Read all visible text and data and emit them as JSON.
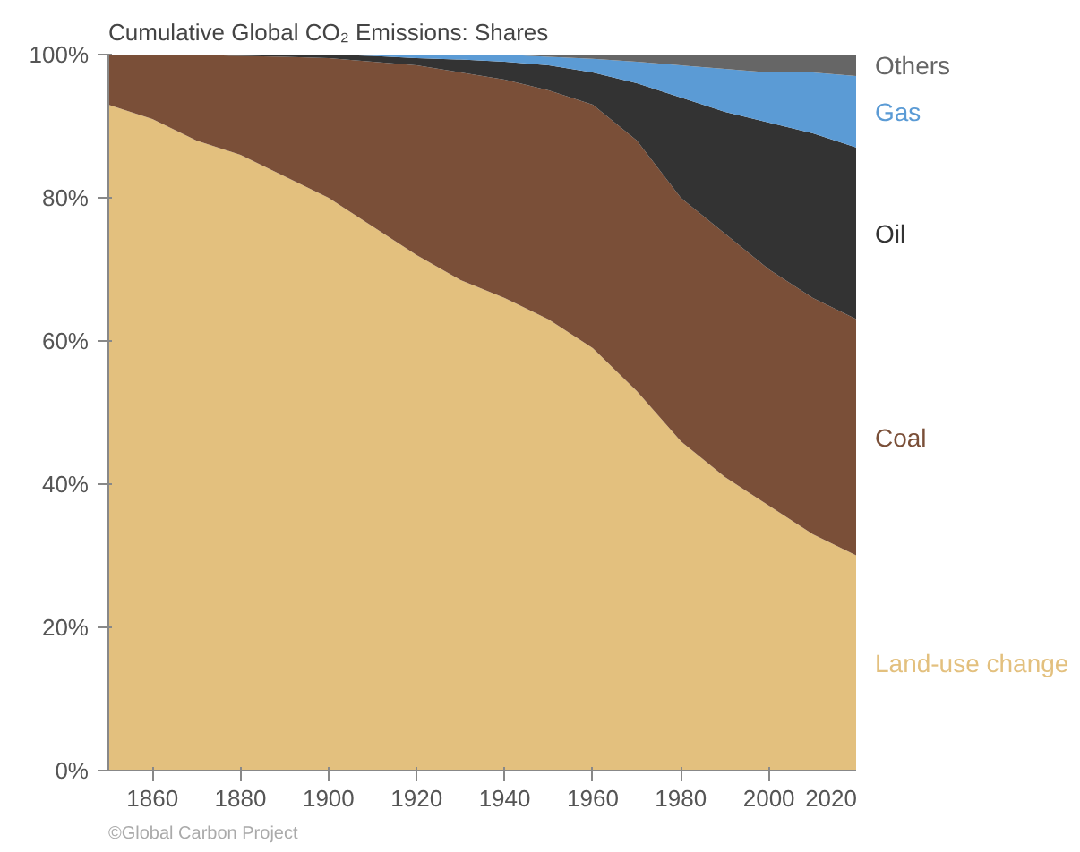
{
  "chart_data": {
    "type": "area",
    "stacked": true,
    "title": "Cumulative Global CO₂ Emissions: Shares",
    "x": [
      1850,
      1860,
      1870,
      1880,
      1890,
      1900,
      1910,
      1920,
      1930,
      1940,
      1950,
      1960,
      1970,
      1980,
      1990,
      2000,
      2010,
      2020
    ],
    "series": [
      {
        "name": "Land-use change",
        "color": "#e3c07e",
        "values": [
          93,
          91,
          88,
          86,
          83,
          80,
          76,
          72,
          68.5,
          66,
          63,
          59,
          53,
          46,
          41,
          37,
          33,
          30
        ]
      },
      {
        "name": "Coal",
        "color": "#7a4f38",
        "values": [
          7,
          9,
          12,
          13.8,
          16.7,
          19.5,
          23,
          26.5,
          29,
          30.5,
          32,
          34,
          35,
          34,
          34,
          33,
          33,
          33
        ]
      },
      {
        "name": "Oil",
        "color": "#333333",
        "values": [
          0,
          0,
          0,
          0.2,
          0.3,
          0.5,
          0.8,
          1,
          1.8,
          2.5,
          3.5,
          4.5,
          8,
          14,
          17,
          20.5,
          23,
          24
        ]
      },
      {
        "name": "Gas",
        "color": "#5b9bd5",
        "values": [
          0,
          0,
          0,
          0,
          0,
          0,
          0.2,
          0.5,
          0.7,
          1,
          1.2,
          1.9,
          3,
          4.5,
          6,
          7,
          8.5,
          10
        ]
      },
      {
        "name": "Others",
        "color": "#666666",
        "values": [
          0,
          0,
          0,
          0,
          0,
          0,
          0,
          0,
          0,
          0,
          0.3,
          0.6,
          1,
          1.5,
          2,
          2.5,
          2.5,
          3
        ]
      }
    ],
    "xlim": [
      1850,
      2020
    ],
    "xticks": [
      1860,
      1880,
      1900,
      1920,
      1940,
      1960,
      1980,
      2000,
      2020
    ],
    "ylim": [
      0,
      100
    ],
    "yticks": [
      {
        "value": 0,
        "label": "0%"
      },
      {
        "value": 20,
        "label": "20%"
      },
      {
        "value": 40,
        "label": "40%"
      },
      {
        "value": 60,
        "label": "60%"
      },
      {
        "value": 80,
        "label": "80%"
      },
      {
        "value": 100,
        "label": "100%"
      }
    ],
    "grid": false,
    "annotations": [
      "©Global Carbon Project"
    ]
  }
}
